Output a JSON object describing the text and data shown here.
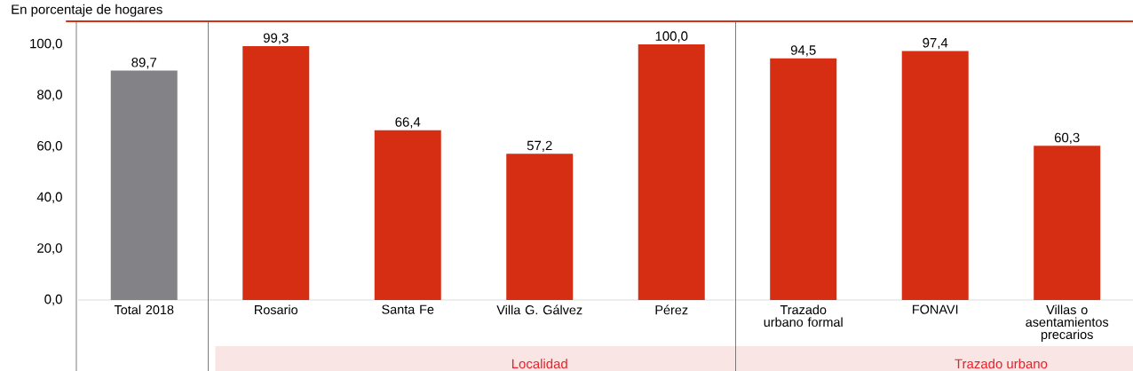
{
  "chart_data": {
    "type": "bar",
    "title": "En porcentaje de hogares",
    "categories": [
      "Total 2018",
      "Rosario",
      "Santa Fe",
      "Villa G. Gálvez",
      "Pérez",
      "Trazado urbano formal",
      "FONAVI",
      "Villas o asentamientos precarios"
    ],
    "values": [
      89.7,
      99.3,
      66.4,
      57.2,
      100.0,
      94.5,
      97.4,
      60.3
    ],
    "value_labels": [
      "89,7",
      "99,3",
      "66,4",
      "57,2",
      "100,0",
      "94,5",
      "97,4",
      "60,3"
    ],
    "colors": [
      "#838387",
      "#d52e12",
      "#d52e12",
      "#d52e12",
      "#d52e12",
      "#d52e12",
      "#d52e12",
      "#d52e12"
    ],
    "ylim": [
      0,
      109
    ],
    "yticks": [
      {
        "value": 0,
        "label": "0,0"
      },
      {
        "value": 20,
        "label": "20,0"
      },
      {
        "value": 40,
        "label": "40,0"
      },
      {
        "value": 60,
        "label": "60,0"
      },
      {
        "value": 80,
        "label": "80,0"
      },
      {
        "value": 100,
        "label": "100,0"
      }
    ],
    "annotations": [
      "Localidad",
      "Trazado urbano"
    ],
    "grid": false
  }
}
